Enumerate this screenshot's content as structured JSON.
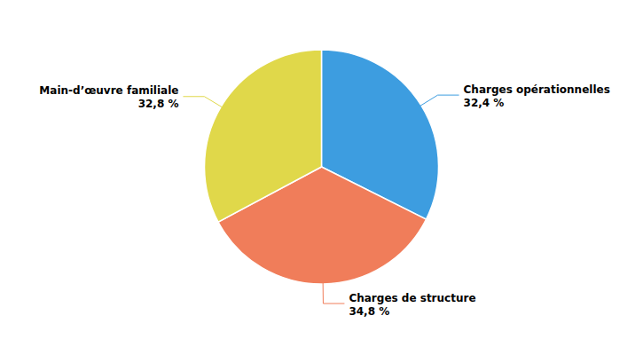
{
  "chart_data": {
    "type": "pie",
    "categories": [
      "Charges opérationnelles",
      "Charges de structure",
      "Main-d’œuvre familiale"
    ],
    "values": [
      32.4,
      34.8,
      32.8
    ],
    "value_labels": [
      "32,4 %",
      "34,8 %",
      "32,8 %"
    ],
    "colors": [
      "#3d9de0",
      "#f07d5a",
      "#e0d84a"
    ],
    "data_labels": true
  }
}
